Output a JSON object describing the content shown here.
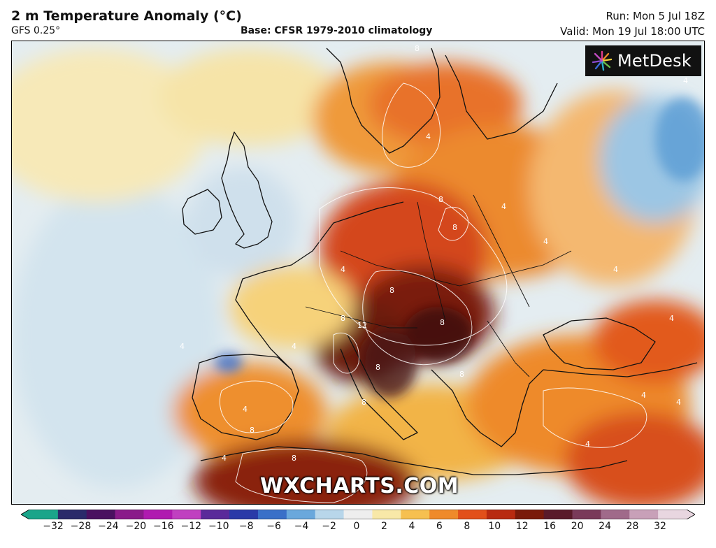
{
  "header": {
    "title": "2 m Temperature Anomaly (°C)",
    "model": "GFS 0.25°",
    "base": "Base: CFSR 1979-2010 climatology",
    "run": "Run: Mon 5 Jul 18Z",
    "valid": "Valid: Mon 19 Jul 18:00 UTC"
  },
  "logo": {
    "text": "MetDesk"
  },
  "watermark": "WXCHARTS.COM",
  "colorbar": {
    "ticks": [
      "−32",
      "−28",
      "−24",
      "−20",
      "−16",
      "−12",
      "−10",
      "−8",
      "−6",
      "−4",
      "−2",
      "0",
      "2",
      "4",
      "6",
      "8",
      "10",
      "12",
      "16",
      "20",
      "24",
      "28",
      "32"
    ],
    "colors": [
      "#1aa58a",
      "#2a2a6a",
      "#4a1060",
      "#8a1a8a",
      "#b01ab0",
      "#c040c0",
      "#5a2a9a",
      "#2a3aa8",
      "#3a70c8",
      "#6aa8dc",
      "#b8d6ea",
      "#eeeeee",
      "#f8e8a8",
      "#f6c050",
      "#ef8a2a",
      "#e2501a",
      "#b82a10",
      "#7a1a0a",
      "#5a1a2a",
      "#7a3a5a",
      "#a06a8a",
      "#c8a0b8",
      "#e8d6e0"
    ]
  },
  "contour_labels": [
    "8",
    "4",
    "8",
    "8",
    "4",
    "8",
    "4",
    "8",
    "4",
    "8",
    "12",
    "8",
    "4",
    "8",
    "4",
    "4",
    "8",
    "4",
    "4",
    "8",
    "4",
    "4",
    "4",
    "8",
    "4",
    "4"
  ]
}
